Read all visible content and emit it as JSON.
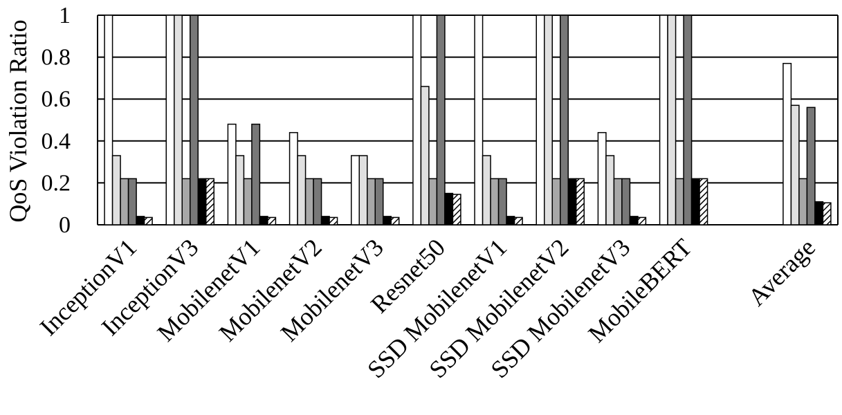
{
  "chart_data": {
    "type": "bar",
    "title": "",
    "xlabel": "",
    "ylabel": "QoS Violation Ratio",
    "ylim": [
      0,
      1
    ],
    "yticks": [
      "0",
      "0.2",
      "0.4",
      "0.6",
      "0.8",
      "1"
    ],
    "grid": true,
    "legend": "none",
    "categories": [
      "InceptionV1",
      "InceptionV3",
      "MobilenetV1",
      "MobilenetV2",
      "MobilenetV3",
      "Resnet50",
      "SSD MobilenetV1",
      "SSD MobilenetV2",
      "SSD MobilenetV3",
      "MobileBERT",
      "",
      "Average"
    ],
    "series": [
      {
        "fill": "#ffffff",
        "pattern": "none",
        "values": [
          1.0,
          1.0,
          0.48,
          0.44,
          0.33,
          1.0,
          1.0,
          1.0,
          0.44,
          1.0,
          null,
          0.77
        ]
      },
      {
        "fill": "#e0e0e0",
        "pattern": "none",
        "values": [
          0.33,
          1.0,
          0.33,
          0.33,
          0.33,
          0.66,
          0.33,
          1.0,
          0.33,
          1.0,
          null,
          0.57
        ]
      },
      {
        "fill": "#a8a8a8",
        "pattern": "none",
        "values": [
          0.22,
          0.22,
          0.22,
          0.22,
          0.22,
          0.22,
          0.22,
          0.22,
          0.22,
          0.22,
          null,
          0.22
        ]
      },
      {
        "fill": "#787878",
        "pattern": "none",
        "values": [
          0.22,
          1.0,
          0.48,
          0.22,
          0.22,
          1.0,
          0.22,
          1.0,
          0.22,
          1.0,
          null,
          0.56
        ]
      },
      {
        "fill": "#000000",
        "pattern": "none",
        "values": [
          0.04,
          0.22,
          0.04,
          0.04,
          0.04,
          0.15,
          0.04,
          0.22,
          0.04,
          0.22,
          null,
          0.11
        ]
      },
      {
        "fill": "#ffffff",
        "pattern": "hatch",
        "values": [
          0.035,
          0.22,
          0.035,
          0.035,
          0.035,
          0.145,
          0.035,
          0.22,
          0.035,
          0.22,
          null,
          0.105
        ]
      }
    ]
  }
}
